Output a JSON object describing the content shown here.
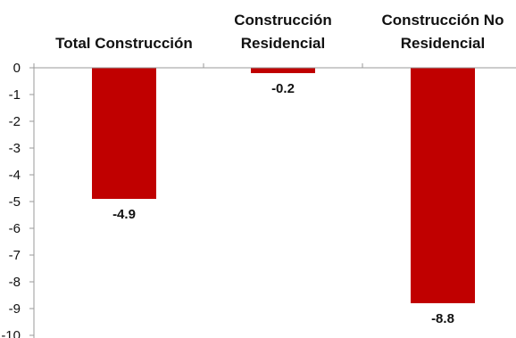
{
  "chart_data": {
    "type": "bar",
    "categories": [
      [
        "Total Construcción"
      ],
      [
        "Construcción",
        "Residencial"
      ],
      [
        "Construcción No",
        "Residencial"
      ]
    ],
    "values": [
      -4.9,
      -0.2,
      -8.8
    ],
    "data_labels": [
      "-4.9",
      "-0.2",
      "-8.8"
    ],
    "ylim": [
      -10,
      0
    ],
    "yticks": [
      0,
      -1,
      -2,
      -3,
      -4,
      -5,
      -6,
      -7,
      -8,
      -9,
      -10
    ],
    "category_axis_position": "top",
    "grid": false,
    "legend": "none",
    "title": "",
    "xlabel": "",
    "ylabel": "",
    "bar_color": "#c00000",
    "axis_color": "#9a9a9a"
  }
}
